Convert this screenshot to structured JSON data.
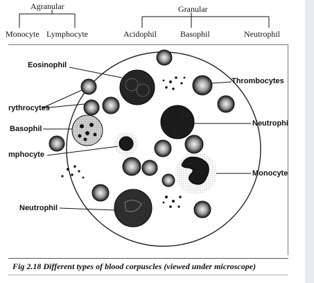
{
  "header": {
    "agranular": "Agranular",
    "granular": "Granular",
    "monocyte": "Monocyte",
    "lymphocyte": "Lymphocyte",
    "acidophil": "Acidophil",
    "basophil": "Basophil",
    "neutrophil": "Neutrophil"
  },
  "labels": {
    "eosinophil": "Eosinophil",
    "erythrocytes": "rythrocytes",
    "basophil": "Basophil",
    "lymphocyte": "mphocyte",
    "neutrophil_left": "Neutrophil",
    "thrombocytes": "Thrombocytes",
    "neutrophil_right": "Neutrophi",
    "monocyte": "Monocyte"
  },
  "caption": "Fig 2.18  Different types of blood corpuscles (viewed under microscope)"
}
